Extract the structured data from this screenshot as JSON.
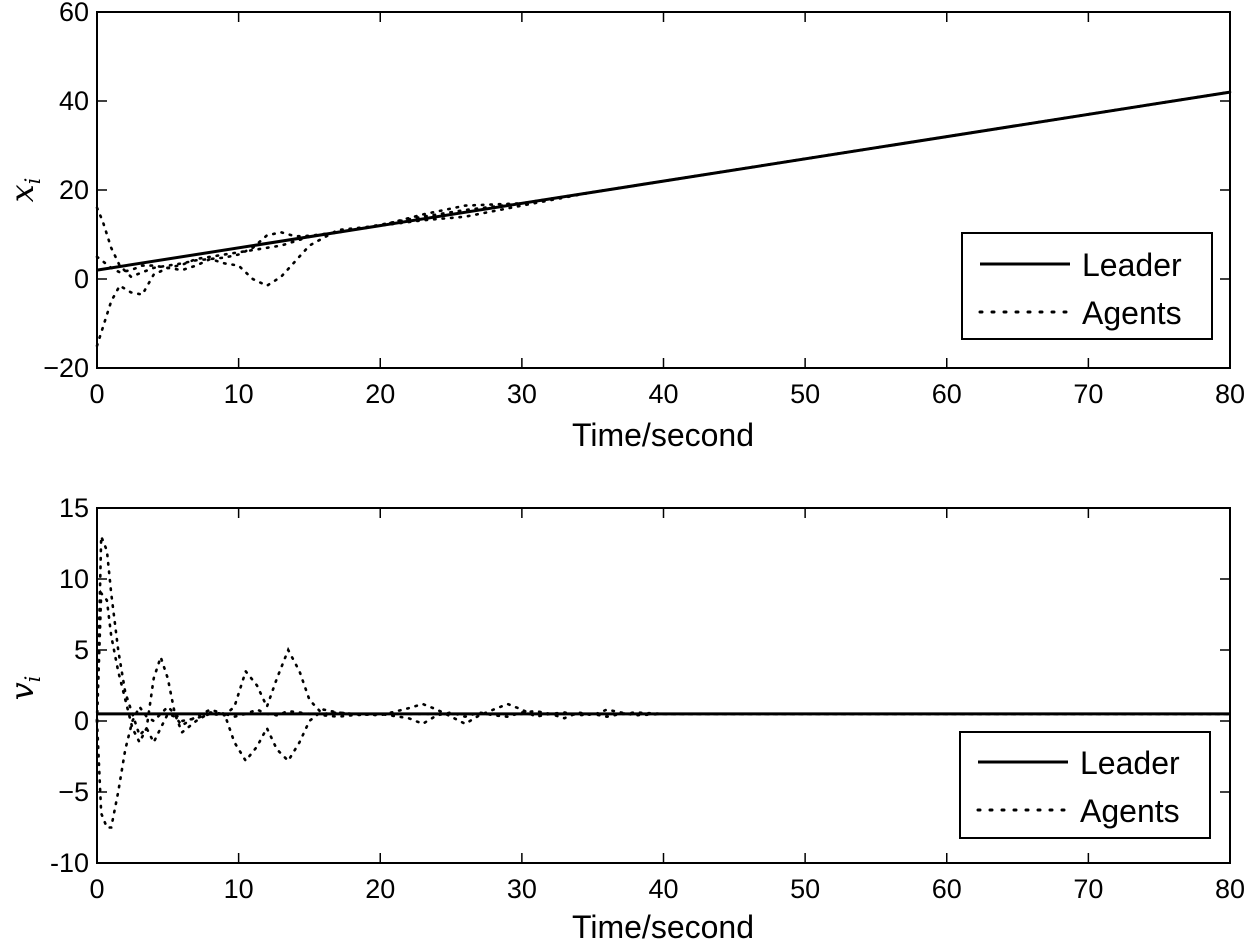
{
  "chart_data": [
    {
      "type": "line",
      "xlabel": "Time/second",
      "ylabel": "x",
      "ylabel_subscript": "i",
      "xlim": [
        0,
        80
      ],
      "ylim": [
        -20,
        60
      ],
      "xticks": [
        "0",
        "10",
        "20",
        "30",
        "40",
        "50",
        "60",
        "70",
        "80"
      ],
      "yticks": [
        "−20",
        "0",
        "20",
        "40",
        "60"
      ],
      "grid": false,
      "legend_position": "lower-right",
      "series": [
        {
          "name": "Leader",
          "style": "solid",
          "x": [
            0,
            80
          ],
          "y": [
            2,
            42
          ]
        },
        {
          "name": "Agents",
          "style": "dotted",
          "curves": [
            {
              "x": [
                0,
                0.4,
                1,
                1.6,
                2.4,
                3.2,
                4,
                5,
                6,
                7,
                8,
                9,
                10,
                11,
                12,
                13,
                14,
                15,
                17,
                20,
                23,
                26,
                30,
                35,
                40,
                50,
                60,
                80
              ],
              "y": [
                16,
                13,
                7,
                3,
                0.5,
                1.5,
                2.5,
                3,
                3.5,
                4.2,
                4.5,
                4.8,
                5.5,
                7,
                9.8,
                10.5,
                9.6,
                9.7,
                10.5,
                12,
                14.5,
                16.5,
                17,
                19.5,
                22,
                27,
                32,
                42
              ]
            },
            {
              "x": [
                0,
                0.4,
                1,
                1.6,
                2.4,
                3.2,
                4,
                5,
                6,
                7,
                8,
                9,
                10,
                11,
                12,
                13,
                14,
                15,
                17,
                20,
                23,
                26,
                30,
                35,
                40,
                50,
                60,
                80
              ],
              "y": [
                -15,
                -11,
                -5,
                -1.5,
                -3,
                -3.5,
                1,
                2.5,
                2,
                3,
                4.5,
                3.5,
                3,
                0,
                -1.5,
                0.5,
                4,
                7.5,
                11,
                12,
                13.2,
                14,
                16.5,
                19.5,
                22,
                27,
                32,
                42
              ]
            },
            {
              "x": [
                0,
                0.4,
                1,
                1.6,
                2.4,
                3.2,
                4,
                5,
                6,
                7,
                8,
                9,
                10,
                11,
                12,
                13,
                14,
                15,
                17,
                20,
                23,
                26,
                30,
                35,
                40,
                50,
                60,
                80
              ],
              "y": [
                5,
                4,
                2.5,
                1.5,
                2,
                3,
                3,
                2.5,
                3.2,
                4.5,
                5,
                5.5,
                6,
                6.5,
                7,
                7.5,
                8.5,
                9.5,
                10.5,
                12.2,
                14,
                15.5,
                17,
                19.5,
                22,
                27,
                32,
                42
              ]
            }
          ]
        }
      ]
    },
    {
      "type": "line",
      "xlabel": "Time/second",
      "ylabel": "v",
      "ylabel_subscript": "i",
      "xlim": [
        0,
        80
      ],
      "ylim": [
        -10,
        15
      ],
      "xticks": [
        "0",
        "10",
        "20",
        "30",
        "40",
        "50",
        "60",
        "70",
        "80"
      ],
      "yticks": [
        "-10",
        "−5",
        "0",
        "5",
        "10",
        "15"
      ],
      "grid": false,
      "legend_position": "lower-right",
      "series": [
        {
          "name": "Leader",
          "style": "solid",
          "x": [
            0,
            80
          ],
          "y": [
            0.5,
            0.5
          ]
        },
        {
          "name": "Agents",
          "style": "dotted",
          "curves": [
            {
              "x": [
                0,
                0.3,
                0.7,
                1,
                1.5,
                2,
                2.5,
                3,
                3.5,
                4,
                4.5,
                5,
                5.5,
                6,
                7,
                8,
                9,
                9.7,
                10.5,
                11.3,
                12,
                12.7,
                13.5,
                14.3,
                15,
                16,
                17,
                18,
                20,
                22,
                23,
                24,
                25,
                26,
                27,
                28,
                29,
                30,
                31,
                32,
                33,
                34,
                35,
                36,
                37,
                38,
                40,
                45,
                55,
                70,
                80
              ],
              "y": [
                0,
                13,
                12,
                9,
                5,
                2,
                0.5,
                -1,
                -0.5,
                -1.5,
                -0.5,
                0.5,
                0.3,
                -0.3,
                0.3,
                0.8,
                0.5,
                -1.5,
                -2.8,
                -1.8,
                -0.5,
                -2,
                -2.8,
                -1.5,
                0,
                0.8,
                0.6,
                0.5,
                0.4,
                0.9,
                1.2,
                0.8,
                0.3,
                -0.2,
                0.4,
                0.8,
                1.2,
                0.8,
                0.3,
                0.5,
                0.2,
                0.6,
                0.4,
                0.8,
                0.6,
                0.4,
                0.5,
                0.5,
                0.5,
                0.5,
                0.5
              ]
            },
            {
              "x": [
                0,
                0.3,
                0.7,
                1,
                1.5,
                2,
                2.5,
                3,
                3.5,
                4,
                4.5,
                5,
                5.5,
                6,
                7,
                8,
                9,
                9.7,
                10.5,
                11.3,
                12,
                12.7,
                13.5,
                14.3,
                15,
                16,
                17,
                18,
                20,
                22,
                23,
                24,
                25,
                26,
                27,
                28,
                29,
                30,
                31,
                32,
                33,
                34,
                35,
                36,
                37,
                38,
                40,
                45,
                55,
                70,
                80
              ],
              "y": [
                0,
                -6.5,
                -7.5,
                -7.5,
                -5,
                -2,
                0,
                1,
                0.3,
                0,
                0.5,
                1,
                0.5,
                0,
                0.2,
                0.5,
                0.4,
                1,
                3.5,
                2.5,
                1,
                3,
                5,
                3.5,
                1.5,
                0.4,
                0.3,
                0.4,
                0.5,
                0.2,
                -0.2,
                0.4,
                0.6,
                0.3,
                0.6,
                0.4,
                0.3,
                0.6,
                0.7,
                0.5,
                0.6,
                0.4,
                0.5,
                0.3,
                0.5,
                0.6,
                0.5,
                0.5,
                0.5,
                0.5,
                0.5
              ]
            },
            {
              "x": [
                0,
                0.3,
                0.7,
                1,
                1.5,
                2,
                2.5,
                3,
                3.5,
                4,
                4.5,
                5,
                5.5,
                6,
                7,
                8,
                9,
                9.7,
                10.5,
                11.3,
                12,
                12.7,
                13.5,
                14.3,
                15,
                16,
                17,
                18,
                20,
                22,
                23,
                24,
                25,
                26,
                27,
                28,
                29,
                30,
                31,
                32,
                33,
                34,
                35,
                36,
                37,
                38,
                40,
                45,
                55,
                70,
                80
              ],
              "y": [
                0,
                9,
                8.5,
                6,
                3.5,
                1.5,
                -0.5,
                -1.5,
                -0.5,
                3,
                4.5,
                3,
                0.5,
                -0.8,
                0,
                0.6,
                0.5,
                0.3,
                0.5,
                0.8,
                0.5,
                0.4,
                0.7,
                0.6,
                0.5,
                0.5,
                0.6,
                0.5,
                0.5,
                0.5,
                0.5,
                0.5,
                0.5,
                0.5,
                0.5,
                0.5,
                0.5,
                0.5,
                0.5,
                0.5,
                0.5,
                0.5,
                0.5,
                0.5,
                0.5,
                0.5,
                0.5,
                0.5,
                0.5,
                0.5,
                0.5
              ]
            }
          ]
        }
      ]
    }
  ],
  "legend": {
    "leader_label": "Leader",
    "agents_label": "Agents"
  }
}
